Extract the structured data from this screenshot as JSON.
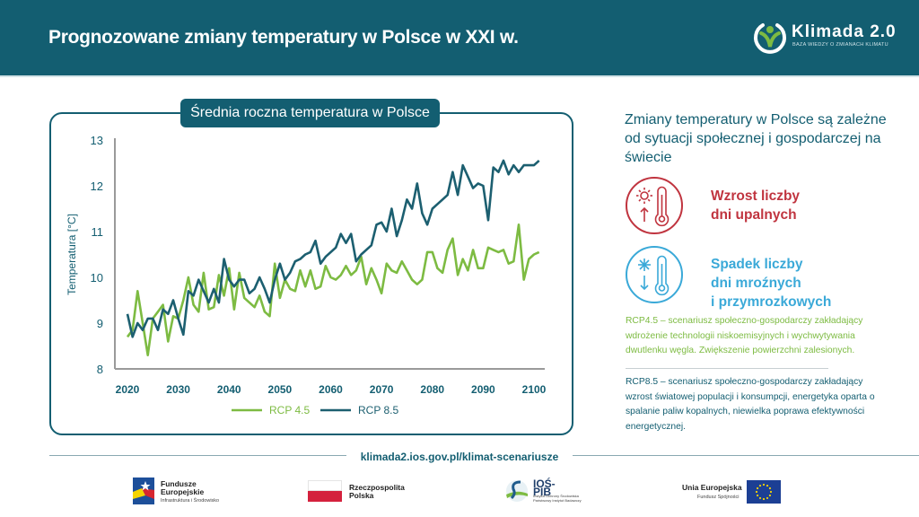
{
  "header": {
    "title": "Prognozowane zmiany temperatury w Polsce w XXI w.",
    "logo_name": "Klimada 2.0",
    "logo_tagline": "BAZA WIEDZY O ZMIANACH KLIMATU"
  },
  "colors": {
    "brand": "#135e71",
    "rcp45": "#7dbb42",
    "rcp85": "#1c5f70",
    "hot": "#c0343f",
    "cold": "#3aa9d8"
  },
  "chart_data": {
    "type": "line",
    "title": "Średnia roczna temperatura w Polsce",
    "xlabel": "",
    "ylabel": "Temperatura [°C]",
    "xlim": [
      2020,
      2100
    ],
    "ylim": [
      8,
      13
    ],
    "x_ticks": [
      "2020",
      "2030",
      "2040",
      "2050",
      "2060",
      "2070",
      "2080",
      "2090",
      "2100"
    ],
    "y_ticks": [
      "8",
      "9",
      "10",
      "11",
      "12",
      "13"
    ],
    "grid": false,
    "legend_position": "bottom",
    "x": [
      2020,
      2021,
      2022,
      2023,
      2024,
      2025,
      2026,
      2027,
      2028,
      2029,
      2030,
      2031,
      2032,
      2033,
      2034,
      2035,
      2036,
      2037,
      2038,
      2039,
      2040,
      2041,
      2042,
      2043,
      2044,
      2045,
      2046,
      2047,
      2048,
      2049,
      2050,
      2051,
      2052,
      2053,
      2054,
      2055,
      2056,
      2057,
      2058,
      2059,
      2060,
      2061,
      2062,
      2063,
      2064,
      2065,
      2066,
      2067,
      2068,
      2069,
      2070,
      2071,
      2072,
      2073,
      2074,
      2075,
      2076,
      2077,
      2078,
      2079,
      2080,
      2081,
      2082,
      2083,
      2084,
      2085,
      2086,
      2087,
      2088,
      2089,
      2090,
      2091,
      2092,
      2093,
      2094,
      2095,
      2096,
      2097,
      2098,
      2099,
      2100,
      2101
    ],
    "series": [
      {
        "name": "RCP 4.5",
        "values": [
          8.7,
          8.85,
          9.7,
          9.0,
          8.3,
          9.1,
          9.25,
          9.4,
          8.6,
          9.15,
          9.1,
          9.5,
          10.0,
          9.4,
          9.25,
          10.1,
          9.3,
          9.35,
          10.05,
          9.6,
          10.2,
          9.3,
          10.1,
          9.55,
          9.45,
          9.35,
          9.6,
          9.25,
          9.15,
          10.3,
          9.55,
          9.95,
          9.75,
          9.7,
          10.15,
          9.8,
          10.15,
          9.75,
          9.8,
          10.25,
          10.0,
          9.95,
          10.05,
          10.25,
          10.05,
          10.15,
          10.45,
          9.85,
          10.2,
          9.95,
          9.65,
          10.3,
          10.15,
          10.1,
          10.35,
          10.15,
          9.95,
          9.85,
          9.95,
          10.55,
          10.55,
          10.2,
          10.1,
          10.6,
          10.85,
          10.05,
          10.4,
          10.15,
          10.6,
          10.2,
          10.2,
          10.65,
          10.6,
          10.55,
          10.6,
          10.3,
          10.35,
          11.15,
          9.95,
          10.4,
          10.5,
          10.55
        ],
        "color": "#7dbb42"
      },
      {
        "name": "RCP 8.5",
        "values": [
          9.2,
          8.7,
          9.0,
          8.85,
          9.1,
          9.1,
          8.85,
          9.3,
          9.2,
          9.5,
          9.1,
          8.75,
          9.7,
          9.6,
          9.95,
          9.7,
          9.45,
          9.75,
          9.45,
          10.4,
          9.95,
          9.8,
          9.95,
          9.95,
          9.65,
          9.75,
          10.0,
          9.75,
          9.45,
          9.95,
          10.3,
          9.95,
          10.1,
          10.35,
          10.4,
          10.5,
          10.55,
          10.8,
          10.3,
          10.45,
          10.55,
          10.65,
          10.95,
          10.75,
          10.95,
          10.35,
          10.5,
          10.6,
          10.7,
          11.15,
          11.2,
          11.0,
          11.5,
          10.9,
          11.25,
          11.7,
          11.5,
          12.05,
          11.4,
          11.15,
          11.5,
          11.6,
          11.7,
          11.8,
          12.3,
          11.8,
          12.45,
          12.2,
          11.95,
          12.05,
          12.0,
          11.25,
          12.4,
          12.3,
          12.55,
          12.25,
          12.45,
          12.3,
          12.45,
          12.45,
          12.45,
          12.55
        ],
        "color": "#1c5f70"
      }
    ]
  },
  "right_panel": {
    "heading": "Zmiany temperatury w Polsce są zależne od sytuacji społecznej i gospodarczej na świecie",
    "hot_icon": "hot-thermometer-icon",
    "hot_line1": "Wzrost liczby",
    "hot_line2": "dni upalnych",
    "cold_icon": "cold-thermometer-icon",
    "cold_line1": "Spadek liczby",
    "cold_line2": "dni mroźnych",
    "cold_line3": "i przymrozkowych",
    "rcp45_note": "RCP4.5 – scenariusz społeczno-gospodarczy zakładający wdrożenie technologii niskoemisyjnych i wychwytywania dwutlenku węgla. Zwiększenie powierzchni zalesionych.",
    "rcp85_note": "RCP8.5 – scenariusz społeczno-gospodarczy zakładający wzrost światowej populacji i konsumpcji, energetyka oparta o spalanie paliw kopalnych, niewielka poprawa efektywności energetycznej."
  },
  "url": "klimada2.ios.gov.pl/klimat-scenariusze",
  "footer": {
    "fe_line1": "Fundusze",
    "fe_line2": "Europejskie",
    "fe_sub": "Infrastruktura i Środowisko",
    "rp_line1": "Rzeczpospolita",
    "rp_line2": "Polska",
    "ios_name": "IOŚ-PIB",
    "ios_sub1": "Instytut Ochrony Środowiska",
    "ios_sub2": "Państwowy Instytut Badawczy",
    "eu_line1": "Unia Europejska",
    "eu_sub": "Fundusz Spójności"
  }
}
